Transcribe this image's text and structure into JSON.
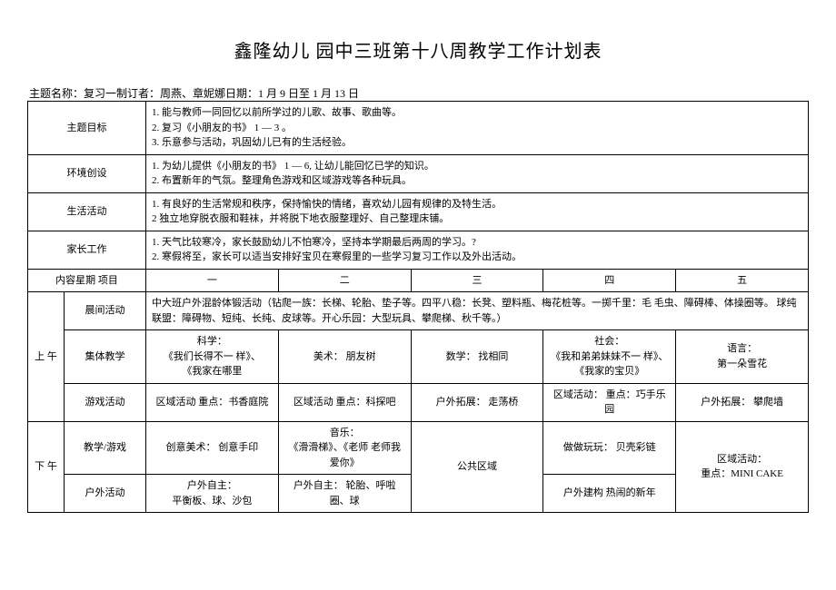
{
  "title": "鑫隆幼儿 园中三班第十八周教学工作计划表",
  "meta": "主题名称：复习一制订者：周燕、章妮娜日期：1 月 9 日至 1 月 13 日",
  "rows": {
    "theme_goal_label": "主题目标",
    "theme_goal": "1. 能与教师一同回忆以前所学过的儿歌、故事、歌曲等。\n2. 复习《小朋友的书》 1 — 3 。\n3. 乐意参与活动，巩固幼儿已有的生活经验。",
    "env_label": "环境创设",
    "env": "1. 为幼儿提供《小朋友的书》 1 — 6, 让幼儿能回忆已学的知识。\n2. 布置新年的气氛。整理角色游戏和区域游戏等各种玩具。",
    "life_label": "生活活动",
    "life": "1. 有良好的生活常规和秩序，保持愉快的情绪，喜欢幼儿园有规律的及特生活。\n2 独立地穿脱衣服和鞋袜，并将脱下地衣服整理好、自己整理床铺。",
    "parent_label": "家长工作",
    "parent": "1. 天气比较寒冷，家长鼓励幼儿不怕寒冷，坚持本学期最后两周的学习。?\n2. 寒假将至，家长可以适当安排好宝贝在寒假里的一些学习复习工作以及外出活动。"
  },
  "schedule_header": {
    "content_label": "内容星期  项目",
    "d1": "一",
    "d2": "二",
    "d3": "三",
    "d4": "四",
    "d5": "五"
  },
  "morning": {
    "period": "上  午",
    "r1_label": "晨间活动",
    "r1": "中大班户外混龄体锻活动（钻爬一族：长梯、轮胎、垫子等。四平八稳：长凳、塑料瓶、梅花桩等。一掷千里：毛 毛虫、障碍棒、体操圈等。 球纯联盟：障碍物、短纯、长纯、皮球等。开心乐园：大型玩具、攀爬梯、秋千等。）",
    "r2_label": "集体教学",
    "r2_d1": "科学：\n《我们长得不一 样》、\n《我家在哪里",
    "r2_d2": "美术：  朋友树",
    "r2_d3": "数学：  找相同",
    "r2_d4": "社会：\n《我和弟弟妹妹不一 样》、\n《我家的宝贝》",
    "r2_d5": "语言：\n第一朵雪花",
    "r3_label": "游戏活动",
    "r3_d1": "区域活动  重点：书香庭院",
    "r3_d2": "区域活动  重点：科探吧",
    "r3_d3": "户外拓展：  走荡桥",
    "r3_d4": "区域活动：  重点：巧手乐园",
    "r3_d5": "户外拓展：  攀爬墙"
  },
  "afternoon": {
    "period": "下  午",
    "r1_label": "教学/游戏",
    "r1_d1": "创意美术：  创意手印",
    "r1_d2": "音乐：\n《滑滑梯》、《老师  老师我爱你》",
    "r1_d3": "公共区域",
    "r1_d4": "做做玩玩：  贝壳彩链",
    "r1_d5": "区域活动：\n重点：MINI CAKE",
    "r2_label": "户外活动",
    "r2_d1": "户外自主：\n平衡板、球、沙包",
    "r2_d2": "户外自主：  轮胎、呼啦圈、球",
    "r2_d4": "户外建构  热闹的新年"
  }
}
